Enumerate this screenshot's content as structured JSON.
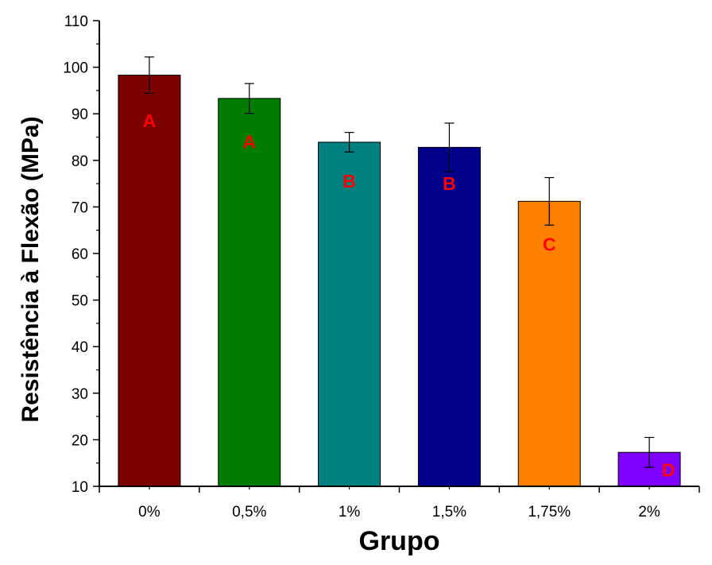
{
  "chart_data": {
    "type": "bar",
    "title": "",
    "xlabel": "Grupo",
    "ylabel": "Resistência à Flexão (MPa)",
    "ylim": [
      10,
      110
    ],
    "yticks": [
      10,
      20,
      30,
      40,
      50,
      60,
      70,
      80,
      90,
      100,
      110
    ],
    "categories": [
      "0%",
      "0,5%",
      "1%",
      "1,5%",
      "1,75%",
      "2%"
    ],
    "values": [
      98.3,
      93.3,
      83.9,
      82.8,
      71.2,
      17.3
    ],
    "error": [
      3.9,
      3.2,
      2.1,
      5.2,
      5.1,
      3.2
    ],
    "group_letters": [
      "A",
      "A",
      "B",
      "B",
      "C",
      "D"
    ],
    "letter_values": [
      88.5,
      84.0,
      75.5,
      75.0,
      62.0,
      13.5
    ],
    "bar_colors": [
      "#7b0000",
      "#007d00",
      "#008080",
      "#00008b",
      "#ff8000",
      "#8000ff"
    ],
    "letter_color": "#ff0000",
    "grid": false,
    "legend": "none"
  }
}
